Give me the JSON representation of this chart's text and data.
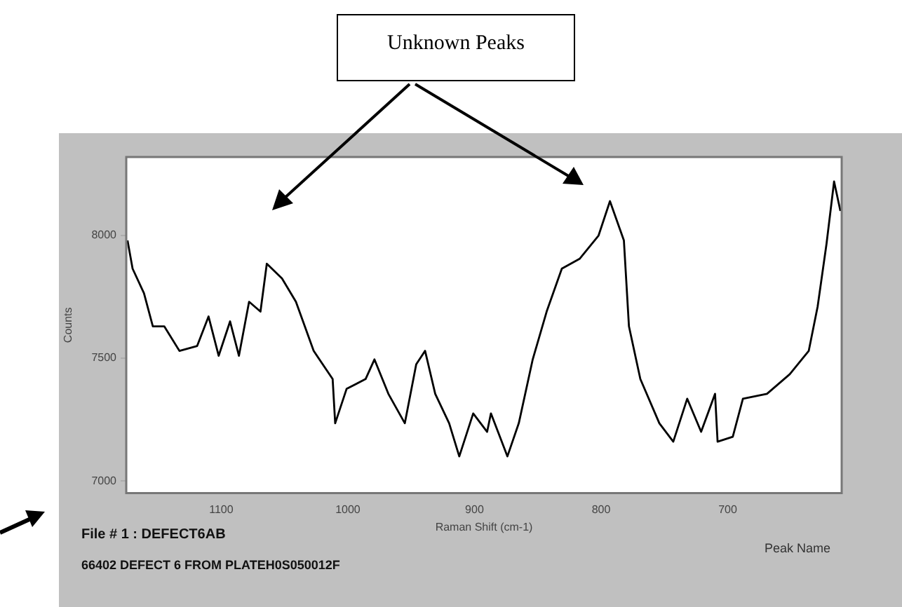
{
  "chart_data": {
    "type": "line",
    "xlabel": "Raman Shift (cm-1)",
    "ylabel": "Counts",
    "annotations": [
      "Unknown Peaks",
      "File # 1 : DEFECT6AB",
      "66402 DEFECT 6 FROM PLATEH0S050012F",
      "Peak Name"
    ],
    "x": [
      1174,
      1170,
      1161,
      1154,
      1145,
      1133,
      1119,
      1110,
      1102,
      1093,
      1086,
      1078,
      1069,
      1064,
      1052,
      1041,
      1027,
      1012,
      1010,
      1001,
      986,
      979,
      968,
      955,
      946,
      939,
      931,
      920,
      912,
      901,
      890,
      887,
      874,
      865,
      854,
      843,
      831,
      817,
      802,
      793,
      782,
      778,
      769,
      754,
      743,
      732,
      721,
      710,
      708,
      696,
      688,
      669,
      651,
      636,
      629,
      622,
      616,
      611
    ],
    "series": [
      {
        "color": "#000000",
        "values": [
          7980,
          7865,
          7765,
          7630,
          7630,
          7530,
          7550,
          7670,
          7510,
          7650,
          7510,
          7730,
          7690,
          7885,
          7825,
          7730,
          7530,
          7415,
          7235,
          7375,
          7415,
          7495,
          7355,
          7235,
          7475,
          7530,
          7355,
          7235,
          7100,
          7275,
          7200,
          7275,
          7100,
          7235,
          7495,
          7690,
          7865,
          7905,
          8000,
          8140,
          7980,
          7630,
          7415,
          7235,
          7160,
          7335,
          7200,
          7355,
          7160,
          7180,
          7335,
          7355,
          7435,
          7530,
          7710,
          7965,
          8220,
          8100
        ]
      }
    ],
    "xlim": [
      1175,
      610
    ],
    "xticks": [
      1100,
      1000,
      900,
      800,
      700
    ],
    "ylim": [
      6950,
      8320
    ],
    "yticks": [
      7000,
      7500,
      8000
    ],
    "grid": false,
    "legend": false,
    "marker": "none",
    "line_style": "solid"
  }
}
